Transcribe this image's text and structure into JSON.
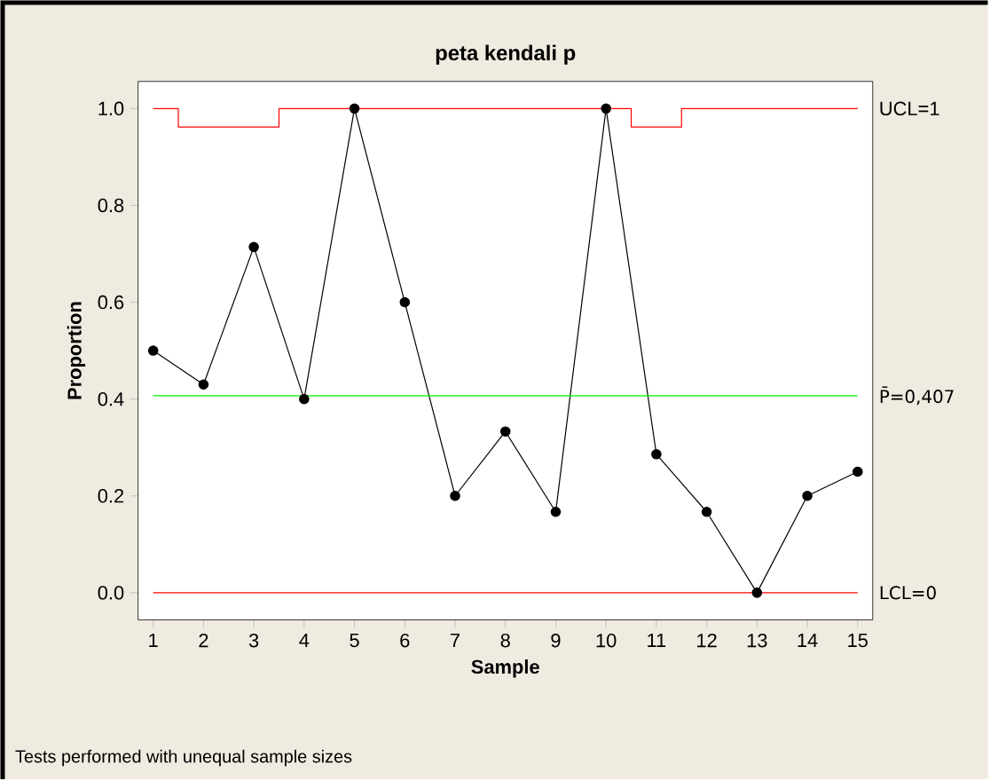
{
  "chart_data": {
    "type": "line",
    "title": "peta kendali p",
    "xlabel": "Sample",
    "ylabel": "Proportion",
    "x": [
      1,
      2,
      3,
      4,
      5,
      6,
      7,
      8,
      9,
      10,
      11,
      12,
      13,
      14,
      15
    ],
    "series": [
      {
        "color": "#000000",
        "marker": "circle",
        "values": [
          0.5,
          0.43,
          0.714,
          0.4,
          1.0,
          0.6,
          0.2,
          0.333,
          0.167,
          1.0,
          0.286,
          0.167,
          0.0,
          0.2,
          0.25
        ]
      },
      {
        "type": "step",
        "name": "UCL=1",
        "color": "#ff0000",
        "marker": "none",
        "values": [
          1.0,
          0.962,
          0.962,
          1.0,
          1.0,
          1.0,
          1.0,
          1.0,
          1.0,
          1.0,
          0.962,
          1.0,
          1.0,
          1.0,
          1.0
        ]
      }
    ],
    "ref_lines": [
      {
        "axis": "y",
        "value": 0.407,
        "label": "P̄=0,407",
        "color": "#00ff00"
      },
      {
        "axis": "y",
        "value": 0.0,
        "label": "LCL=0",
        "color": "#ff0000"
      }
    ],
    "xlim": [
      0.7,
      15.3
    ],
    "ylim": [
      -0.056,
      1.056
    ],
    "xticks": [
      1,
      2,
      3,
      4,
      5,
      6,
      7,
      8,
      9,
      10,
      11,
      12,
      13,
      14,
      15
    ],
    "yticks": [
      {
        "value": 0.0,
        "label": "0.0"
      },
      {
        "value": 0.2,
        "label": "0.2"
      },
      {
        "value": 0.4,
        "label": "0.4"
      },
      {
        "value": 0.6,
        "label": "0.6"
      },
      {
        "value": 0.8,
        "label": "0.8"
      },
      {
        "value": 1.0,
        "label": "1.0"
      }
    ],
    "grid": false,
    "annotations": [
      "Tests performed with unequal sample sizes"
    ]
  }
}
